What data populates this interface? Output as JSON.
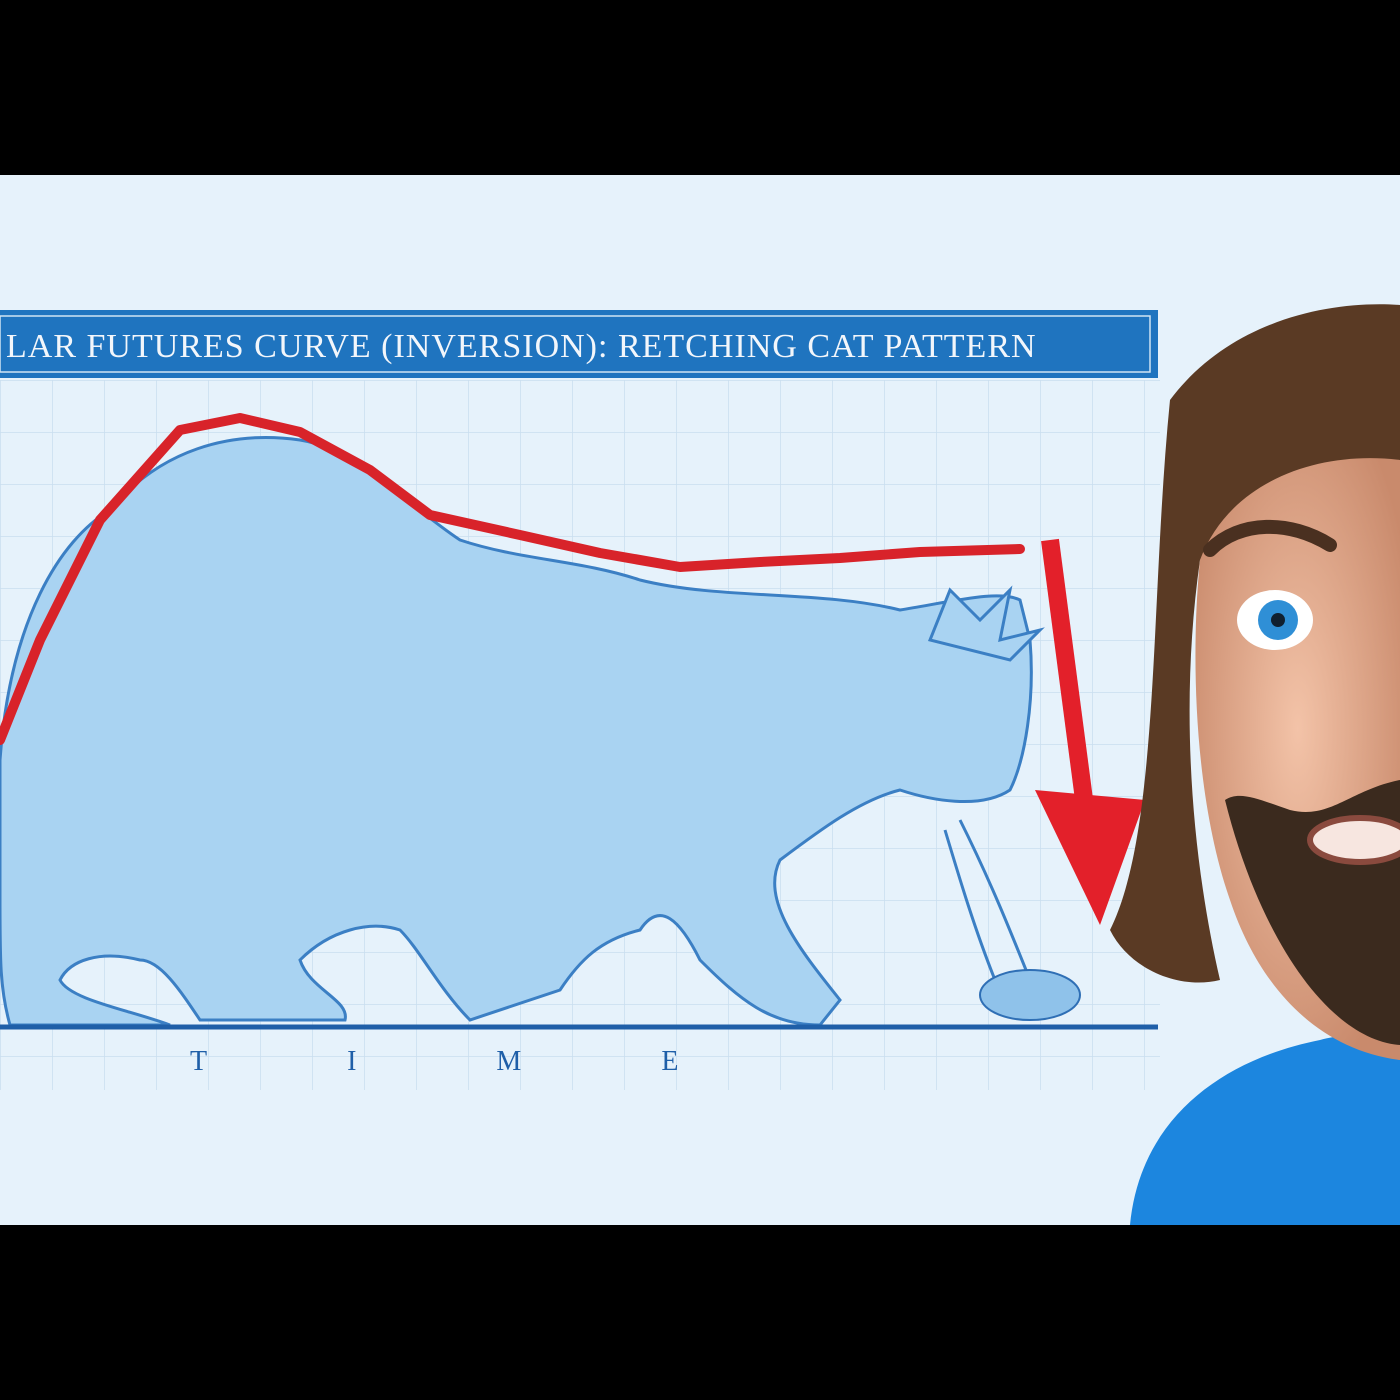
{
  "banner": {
    "title": "LAR FUTURES CURVE (INVERSION): RETCHING CAT PATTERN"
  },
  "axis": {
    "label": "TIME"
  }
}
